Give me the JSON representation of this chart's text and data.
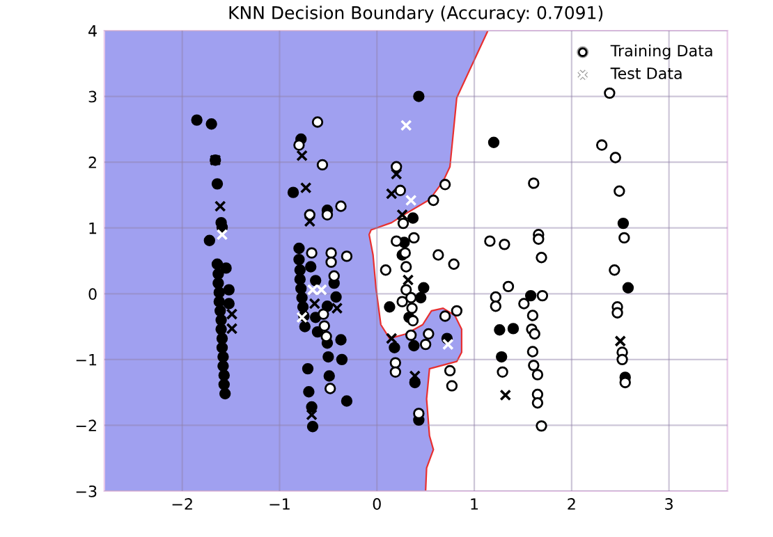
{
  "chart_data": {
    "type": "scatter",
    "title": "KNN Decision Boundary (Accuracy: 0.7091)",
    "xlim": [
      -2.8,
      3.6
    ],
    "ylim": [
      -3,
      4
    ],
    "xticks": [
      -2,
      -1,
      0,
      1,
      2,
      3
    ],
    "yticks": [
      -3,
      -2,
      -1,
      0,
      1,
      2,
      3,
      4
    ],
    "grid": true,
    "legend": "top right",
    "series": [
      {
        "type": "area",
        "color": "#a0a0f0",
        "x": [
          1.14,
          0.82,
          0.75,
          0.68,
          0.54,
          0.3,
          0.15,
          -0.06,
          -0.08,
          -0.04,
          -0.01,
          0.04,
          0.13,
          0.3,
          0.47,
          0.56,
          0.68,
          0.8,
          0.87,
          0.87,
          0.82,
          0.54,
          0.51,
          0.54,
          0.58,
          0.51,
          0.5,
          -2.8,
          -2.8
        ],
        "values": [
          4,
          2.98,
          1.93,
          1.71,
          1.43,
          1.22,
          1.08,
          0.97,
          0.9,
          0.59,
          0.09,
          -0.47,
          -0.68,
          -0.61,
          -0.47,
          -0.26,
          -0.22,
          -0.33,
          -0.54,
          -0.89,
          -1.03,
          -1.14,
          -1.6,
          -2.16,
          -2.37,
          -2.65,
          -3,
          -3,
          4
        ]
      },
      {
        "type": "line",
        "color": "#e83030",
        "x": [
          1.14,
          0.82,
          0.75,
          0.68,
          0.54,
          0.3,
          0.15,
          -0.06,
          -0.08,
          -0.04,
          -0.01,
          0.04,
          0.13,
          0.3,
          0.47,
          0.56,
          0.68,
          0.8,
          0.87,
          0.87,
          0.82,
          0.54,
          0.51,
          0.54,
          0.58,
          0.51,
          0.5
        ],
        "values": [
          4,
          2.98,
          1.93,
          1.71,
          1.43,
          1.22,
          1.08,
          0.97,
          0.9,
          0.59,
          0.09,
          -0.47,
          -0.68,
          -0.61,
          -0.47,
          -0.26,
          -0.22,
          -0.33,
          -0.54,
          -0.89,
          -1.03,
          -1.14,
          -1.6,
          -2.16,
          -2.37,
          -2.65,
          -3
        ]
      },
      {
        "marker": "circle",
        "color": "#000000",
        "x": [
          -1.85,
          -1.7,
          -1.66,
          -1.64,
          -1.6,
          -1.59,
          -1.72,
          -1.55,
          -1.64,
          -1.63,
          -1.63,
          -1.62,
          -1.62,
          -1.61,
          -1.6,
          -1.6,
          -1.59,
          -1.59,
          -1.58,
          -1.58,
          -1.57,
          -1.57,
          -1.56,
          -1.52,
          -1.52,
          -0.78,
          -0.86,
          -0.51,
          -0.8,
          -0.8,
          -0.79,
          -0.79,
          -0.78,
          -0.77,
          -0.76,
          -0.75,
          -0.74,
          -0.68,
          -0.63,
          -0.63,
          -0.61,
          -0.71,
          -0.7,
          -0.67,
          -0.66,
          -0.51,
          -0.51,
          -0.5,
          -0.49,
          -0.44,
          -0.42,
          -0.37,
          -0.36,
          -0.31,
          0.43,
          0.37,
          0.28,
          0.26,
          0.13,
          0.48,
          0.45,
          0.33,
          0.18,
          0.38,
          0.39,
          0.43,
          0.72,
          1.2,
          1.26,
          1.4,
          1.28,
          1.58,
          2.53,
          2.58,
          2.55
        ],
        "values": [
          2.64,
          2.58,
          2.03,
          1.67,
          1.08,
          1.01,
          0.81,
          0.39,
          0.45,
          0.3,
          0.16,
          0.02,
          -0.12,
          -0.26,
          -0.4,
          -0.54,
          -0.68,
          -0.82,
          -0.96,
          -1.1,
          -1.24,
          -1.38,
          -1.52,
          0.06,
          -0.15,
          2.35,
          1.54,
          1.27,
          0.69,
          0.52,
          0.36,
          0.22,
          0.08,
          -0.06,
          -0.2,
          -0.34,
          -0.5,
          0.41,
          0.2,
          -0.36,
          -0.58,
          -1.14,
          -1.49,
          -1.72,
          -2.02,
          -0.19,
          -0.75,
          -0.96,
          -1.25,
          0.16,
          -0.05,
          -0.7,
          -1.0,
          -1.63,
          3.0,
          1.15,
          0.78,
          0.59,
          -0.2,
          0.09,
          -0.06,
          -0.36,
          -0.82,
          -0.79,
          -1.35,
          -1.92,
          -0.68,
          2.3,
          -0.55,
          -0.53,
          -0.96,
          -0.03,
          1.07,
          0.09,
          -1.27
        ]
      },
      {
        "marker": "circle",
        "color": "#ffffff",
        "name": "Training Data",
        "x": [
          -0.61,
          -0.8,
          -0.56,
          -0.69,
          -0.51,
          -0.37,
          -0.67,
          -0.47,
          -0.47,
          -0.31,
          -0.44,
          -0.55,
          -0.54,
          -0.52,
          -0.48,
          0.2,
          0.24,
          0.7,
          0.58,
          0.27,
          0.38,
          0.2,
          0.29,
          0.3,
          0.63,
          0.79,
          0.09,
          0.3,
          0.35,
          0.26,
          0.36,
          0.37,
          0.35,
          0.53,
          0.5,
          0.82,
          0.7,
          0.19,
          0.19,
          0.75,
          0.77,
          0.43,
          1.16,
          1.31,
          1.61,
          1.66,
          1.66,
          1.69,
          1.35,
          1.22,
          1.22,
          1.51,
          1.7,
          1.6,
          1.59,
          1.62,
          1.6,
          1.61,
          1.65,
          1.65,
          1.65,
          1.69,
          1.29,
          2.39,
          2.31,
          2.45,
          2.49,
          2.54,
          2.44,
          2.47,
          2.47,
          2.52,
          2.52,
          2.55
        ],
        "values": [
          2.61,
          2.26,
          1.96,
          1.2,
          1.2,
          1.33,
          0.62,
          0.62,
          0.48,
          0.57,
          0.27,
          -0.31,
          -0.49,
          -0.65,
          -1.44,
          1.93,
          1.57,
          1.66,
          1.42,
          1.07,
          0.85,
          0.8,
          0.62,
          0.41,
          0.59,
          0.45,
          0.36,
          0.06,
          -0.06,
          -0.12,
          -0.22,
          -0.41,
          -0.63,
          -0.61,
          -0.77,
          -0.26,
          -0.34,
          -1.05,
          -1.19,
          -1.17,
          -1.4,
          -1.82,
          0.8,
          0.75,
          1.68,
          0.9,
          0.83,
          0.55,
          0.11,
          -0.05,
          -0.19,
          -0.15,
          -0.03,
          -0.33,
          -0.54,
          -0.61,
          -0.88,
          -1.09,
          -1.23,
          -1.53,
          -1.66,
          -2.01,
          -1.19,
          3.05,
          2.26,
          2.07,
          1.56,
          0.85,
          0.36,
          -0.2,
          -0.29,
          -0.89,
          -1.0,
          -1.35
        ]
      },
      {
        "marker": "cross",
        "color": "#000000",
        "x": [
          -1.66,
          -1.61,
          -1.49,
          -1.49,
          -0.73,
          -0.77,
          -0.69,
          -0.64,
          -0.41,
          -0.67,
          0.2,
          0.15,
          0.26,
          0.32,
          0.15,
          0.39,
          1.32,
          2.5
        ],
        "values": [
          2.03,
          1.33,
          -0.31,
          -0.53,
          1.61,
          2.1,
          1.1,
          -0.15,
          -0.22,
          -1.84,
          1.82,
          1.52,
          1.2,
          0.21,
          -0.68,
          -1.25,
          -1.54,
          -0.72
        ]
      },
      {
        "marker": "cross",
        "color": "#ffffff",
        "name": "Test Data",
        "x": [
          -1.59,
          -0.66,
          -0.57,
          -0.77,
          0.3,
          0.35,
          0.73
        ],
        "values": [
          0.9,
          0.06,
          0.06,
          -0.36,
          2.56,
          1.42,
          -0.77
        ]
      }
    ]
  }
}
